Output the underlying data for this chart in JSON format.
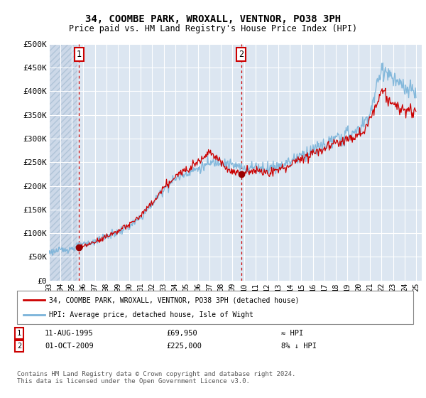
{
  "title": "34, COOMBE PARK, WROXALL, VENTNOR, PO38 3PH",
  "subtitle": "Price paid vs. HM Land Registry's House Price Index (HPI)",
  "ylim": [
    0,
    500000
  ],
  "yticks": [
    0,
    50000,
    100000,
    150000,
    200000,
    250000,
    300000,
    350000,
    400000,
    450000,
    500000
  ],
  "ytick_labels": [
    "£0",
    "£50K",
    "£100K",
    "£150K",
    "£200K",
    "£250K",
    "£300K",
    "£350K",
    "£400K",
    "£450K",
    "£500K"
  ],
  "xlim_start": 1993,
  "xlim_end": 2025.5,
  "background_color": "#dce6f1",
  "hatch_facecolor": "#ccd9e8",
  "grid_color": "#ffffff",
  "transaction1_date_num": 1995.61,
  "transaction1_price": 69950,
  "transaction1_label": "1",
  "transaction2_date_num": 2009.75,
  "transaction2_price": 225000,
  "transaction2_label": "2",
  "transaction_color": "#990000",
  "hpi_color": "#7ab3d9",
  "line_color": "#cc0000",
  "legend_label_red": "34, COOMBE PARK, WROXALL, VENTNOR, PO38 3PH (detached house)",
  "legend_label_blue": "HPI: Average price, detached house, Isle of Wight",
  "footnote1_label": "1",
  "footnote1_date": "11-AUG-1995",
  "footnote1_price": "£69,950",
  "footnote1_hpi": "≈ HPI",
  "footnote2_label": "2",
  "footnote2_date": "01-OCT-2009",
  "footnote2_price": "£225,000",
  "footnote2_hpi": "8% ↓ HPI",
  "copyright": "Contains HM Land Registry data © Crown copyright and database right 2024.\nThis data is licensed under the Open Government Licence v3.0."
}
